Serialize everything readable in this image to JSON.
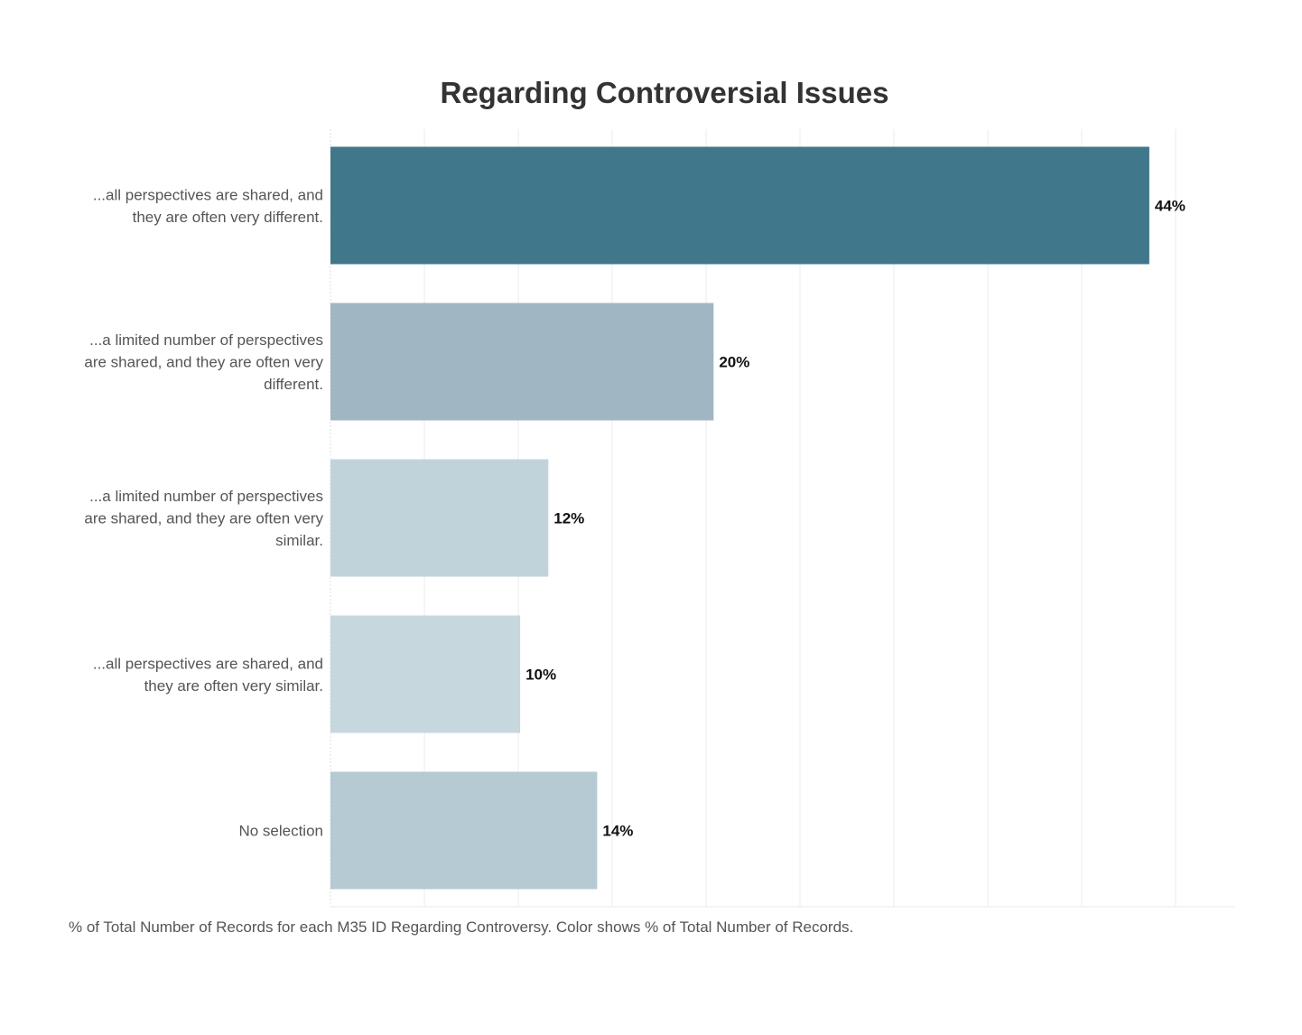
{
  "chart_data": {
    "type": "bar",
    "orientation": "horizontal",
    "title": "Regarding Controversial Issues",
    "categories": [
      [
        "...all perspectives are shared, and",
        "they are often very different."
      ],
      [
        "...a limited number of perspectives",
        "are shared, and they are often very",
        "different."
      ],
      [
        "...a limited number of perspectives",
        "are shared, and they are often very",
        "similar."
      ],
      [
        "...all perspectives are shared, and",
        "they are often very similar."
      ],
      [
        "No selection"
      ]
    ],
    "values": [
      43.6,
      20.4,
      11.6,
      10.1,
      14.2
    ],
    "value_labels": [
      "44%",
      "20%",
      "12%",
      "10%",
      "14%"
    ],
    "bar_colors": [
      "#41778b",
      "#a0b7c3",
      "#c1d3da",
      "#c6d7dd",
      "#b5cad3"
    ],
    "xlim": [
      0,
      48
    ],
    "grid": true,
    "xlabel": "",
    "ylabel": ""
  },
  "caption": "% of Total Number of Records for each M35 ID Regarding Controversy.  Color shows % of Total Number of Records."
}
